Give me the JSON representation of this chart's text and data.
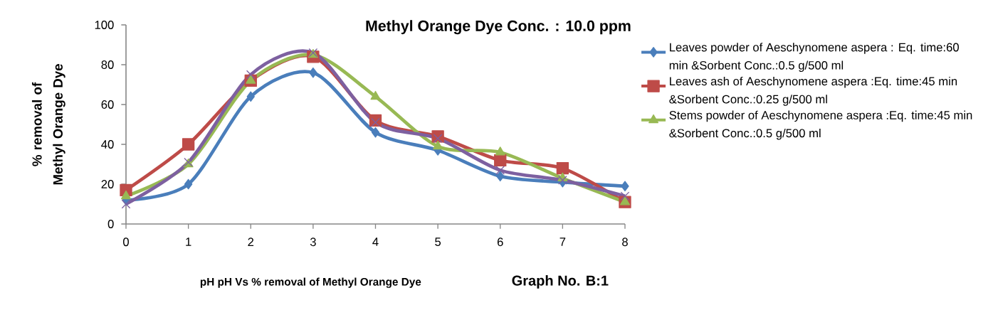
{
  "chart_data": {
    "type": "line",
    "title": "Methyl Orange Dye Conc. : 10.0 ppm",
    "xlabel": "pH pH Vs % removal of Methyl Orange Dye",
    "ylabel": "% removal of Methyl Orange Dye",
    "annotations": [
      "Graph No. B:1"
    ],
    "x": [
      0,
      1,
      2,
      3,
      4,
      5,
      6,
      7,
      8
    ],
    "xlim": [
      0,
      8
    ],
    "xticks": [
      0,
      1,
      2,
      3,
      4,
      5,
      6,
      7,
      8
    ],
    "ylim": [
      0,
      100
    ],
    "yticks": [
      0,
      20,
      40,
      60,
      80,
      100
    ],
    "grid": false,
    "legend": "right",
    "line_style": "solid",
    "series": [
      {
        "name": "Leaves powder of Aeschynomene aspera : Eq. time:60 min &Sorbent Conc.:0.5 g/500 ml",
        "color": "#4a7ebb",
        "marker": "diamond",
        "values": [
          12,
          20,
          64,
          76,
          46,
          37,
          24,
          21,
          19
        ]
      },
      {
        "name": "Leaves ash of Aeschynomene aspera :Eq. time:45 min &Sorbent Conc.:0.25 g/500 ml",
        "color": "#be4b48",
        "marker": "square",
        "values": [
          17,
          40,
          72,
          84,
          52,
          44,
          32,
          28,
          11
        ]
      },
      {
        "name": "Stems powder of Aeschynomene aspera :Eq. time:45 min &Sorbent Conc.:0.5 g/500 ml",
        "color": "#98b954",
        "marker": "triangle",
        "values": [
          14,
          30,
          72,
          85,
          64,
          39,
          36,
          23,
          11
        ]
      },
      {
        "color": "#7d60a0",
        "marker": "cross",
        "values": [
          10,
          31,
          75,
          86,
          51,
          43,
          27,
          22,
          14
        ]
      }
    ]
  }
}
